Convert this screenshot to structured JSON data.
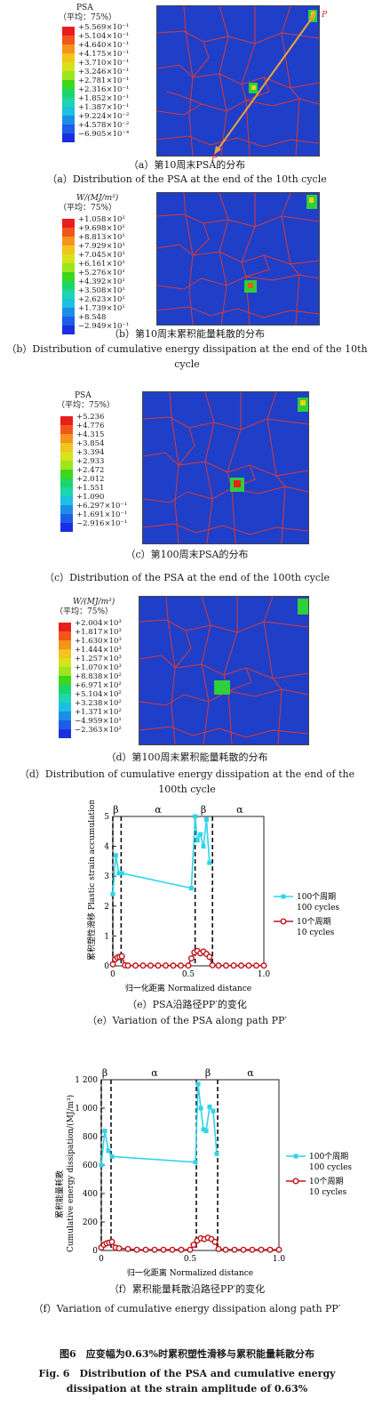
{
  "panel_a": {
    "legend_title": "PSA",
    "legend_subtitle": "（平均：75%）",
    "ticks": [
      "+5.569×10⁻¹",
      "+5.104×10⁻¹",
      "+4.640×10⁻¹",
      "+4.175×10⁻¹",
      "+3.710×10⁻¹",
      "+3.246×10⁻¹",
      "+2.781×10⁻¹",
      "+2.316×10⁻¹",
      "+1.852×10⁻¹",
      "+1.387×10⁻¹",
      "+9.224×10⁻²",
      "+4.578×10⁻²",
      "−6.905×10⁻⁴"
    ],
    "label_p": "P",
    "label_pp": "P′",
    "caption_cn": "（a）第10周末PSA的分布",
    "caption_en": "（a）Distribution of the PSA at the end of the 10th cycle"
  },
  "panel_b": {
    "legend_title": "W/(MJ/m³)",
    "legend_subtitle": "（平均：75%）",
    "ticks": [
      "+1.058×10²",
      "+9.698×10¹",
      "+8.813×10¹",
      "+7.929×10¹",
      "+7.045×10¹",
      "+6.161×10¹",
      "+5.276×10¹",
      "+4.392×10¹",
      "+3.508×10¹",
      "+2.623×10¹",
      "+1.739×10¹",
      "+8.548",
      "−2.949×10⁻¹"
    ],
    "caption_cn": "（b）第10周末累积能量耗散的分布",
    "caption_en": "（b）Distribution of cumulative energy dissipation at the end of the 10th cycle"
  },
  "panel_c": {
    "legend_title": "PSA",
    "legend_subtitle": "（平均：75%）",
    "ticks": [
      "+5.236",
      "+4.776",
      "+4.315",
      "+3.854",
      "+3.394",
      "+2.933",
      "+2.472",
      "+2.012",
      "+1.551",
      "+1.090",
      "+6.297×10⁻¹",
      "+1.691×10⁻¹",
      "−2.916×10⁻¹"
    ],
    "caption_cn": "（c）第100周末PSA的分布",
    "caption_en": "（c）Distribution of the PSA at the end of the 100th cycle"
  },
  "panel_d": {
    "legend_title": "W/(MJ/m³)",
    "legend_subtitle": "（平均：75%）",
    "ticks": [
      "+2.004×10³",
      "+1.817×10³",
      "+1.630×10³",
      "+1.444×10³",
      "+1.257×10³",
      "+1.070×10³",
      "+8.838×10²",
      "+6.971×10²",
      "+5.104×10²",
      "+3.238×10²",
      "+1.371×10²",
      "−4.959×10¹",
      "−2.363×10²"
    ],
    "caption_cn": "（d）第100周末累积能量耗散的分布",
    "caption_en": "（d）Distribution of cumulative energy dissipation at the end of the 100th cycle"
  },
  "legend_colors": [
    "#e81e1e",
    "#f2561a",
    "#f5941a",
    "#f2c41c",
    "#d8e21a",
    "#9be61c",
    "#3fd61c",
    "#1cd66a",
    "#1cd6b0",
    "#1cc0e2",
    "#1c8ee6",
    "#1c5ee6",
    "#1c2ee2"
  ],
  "chart_data": [
    {
      "type": "line",
      "panel": "e",
      "ylabel": "累积塑性滑移 Plastic strain accumulation",
      "xlabel": "归一化距离 Normalized distance",
      "xlim": [
        0,
        1.0
      ],
      "ylim": [
        0,
        5
      ],
      "xticks": [
        "0",
        "0.5",
        "1.0"
      ],
      "yticks": [
        "0",
        "1",
        "2",
        "3",
        "4",
        "5"
      ],
      "phase_labels": [
        "β",
        "α",
        "β",
        "α"
      ],
      "series": [
        {
          "name": "100 cycles",
          "name_cn": "100个周期",
          "color": "#2fd4ea",
          "x": [
            0.0,
            0.02,
            0.04,
            0.06,
            0.52,
            0.545,
            0.56,
            0.58,
            0.6,
            0.62,
            0.64
          ],
          "y": [
            2.4,
            3.7,
            3.1,
            3.1,
            2.6,
            5.0,
            4.2,
            4.4,
            4.0,
            4.9,
            3.45
          ]
        },
        {
          "name": "10 cycles",
          "name_cn": "10个周期",
          "color": "#c0141c",
          "x": [
            0.0,
            0.015,
            0.03,
            0.045,
            0.06,
            0.08,
            0.1,
            0.15,
            0.2,
            0.25,
            0.3,
            0.35,
            0.4,
            0.45,
            0.5,
            0.52,
            0.54,
            0.56,
            0.58,
            0.6,
            0.62,
            0.64,
            0.66,
            0.7,
            0.75,
            0.8,
            0.85,
            0.9,
            0.95,
            1.0
          ],
          "y": [
            0.05,
            0.22,
            0.28,
            0.3,
            0.32,
            0.02,
            0.01,
            0.01,
            0.01,
            0.01,
            0.01,
            0.01,
            0.01,
            0.01,
            0.01,
            0.25,
            0.45,
            0.5,
            0.42,
            0.48,
            0.4,
            0.3,
            0.02,
            0.01,
            0.01,
            0.01,
            0.01,
            0.01,
            0.01,
            0.01
          ]
        }
      ],
      "caption_cn": "（e）PSA沿路径PP′的变化",
      "caption_en": "（e）Variation of the PSA along path PP′"
    },
    {
      "type": "line",
      "panel": "f",
      "ylabel_cn": "累积能量耗散",
      "ylabel": "Cumulative energy dissipation/(MJ/m³)",
      "xlabel": "归一化距离 Normalized distance",
      "xlim": [
        0,
        1.0
      ],
      "ylim": [
        0,
        1200
      ],
      "xticks": [
        "0",
        "0.5",
        "1.0"
      ],
      "yticks": [
        "0",
        "200",
        "400",
        "600",
        "800",
        "1 000",
        "1 200"
      ],
      "phase_labels": [
        "β",
        "α",
        "β",
        "α"
      ],
      "series": [
        {
          "name": "100 cycles",
          "name_cn": "100个周期",
          "color": "#2fd4ea",
          "x": [
            0.0,
            0.02,
            0.04,
            0.06,
            0.53,
            0.545,
            0.56,
            0.575,
            0.59,
            0.61,
            0.63,
            0.65
          ],
          "y": [
            600,
            840,
            700,
            660,
            620,
            1170,
            1000,
            850,
            840,
            1010,
            980,
            680
          ]
        },
        {
          "name": "10 cycles",
          "name_cn": "10个周期",
          "color": "#c0141c",
          "x": [
            0.0,
            0.015,
            0.03,
            0.045,
            0.06,
            0.08,
            0.1,
            0.15,
            0.2,
            0.25,
            0.3,
            0.35,
            0.4,
            0.45,
            0.5,
            0.52,
            0.54,
            0.56,
            0.58,
            0.6,
            0.62,
            0.64,
            0.66,
            0.7,
            0.75,
            0.8,
            0.85,
            0.9,
            0.95,
            1.0
          ],
          "y": [
            20,
            40,
            50,
            55,
            60,
            20,
            15,
            10,
            5,
            5,
            5,
            5,
            5,
            5,
            5,
            40,
            70,
            85,
            80,
            90,
            80,
            60,
            10,
            5,
            5,
            5,
            5,
            5,
            5,
            5
          ]
        }
      ],
      "caption_cn": "（f）累积能量耗散沿路径PP′的变化",
      "caption_en": "（f）Variation of cumulative energy dissipation along path PP′"
    }
  ],
  "figure": {
    "title_cn": "图6　应变幅为0.63%时累积塑性滑移与累积能量耗散分布",
    "title_en": "Fig. 6　Distribution of the PSA and cumulative energy dissipation at the strain amplitude of 0.63%"
  }
}
